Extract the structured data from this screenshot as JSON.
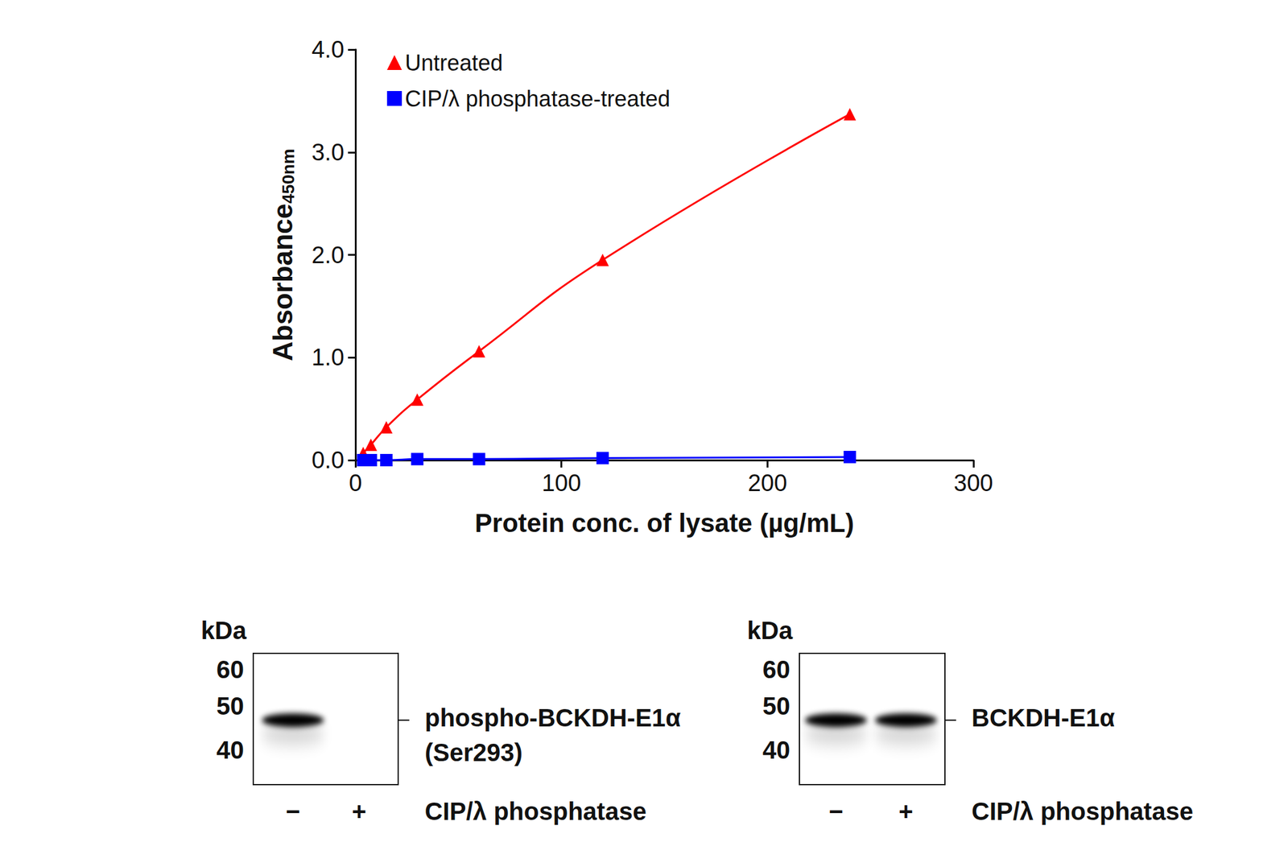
{
  "chart_data": {
    "type": "line",
    "x_label": "Protein conc. of lysate (µg/mL)",
    "y_label": "Absorbance",
    "y_label_subscript": "450nm",
    "xlim": [
      0,
      300
    ],
    "xticks": [
      0,
      100,
      200,
      300
    ],
    "ylim": [
      0,
      4
    ],
    "yticks": [
      {
        "value": 0,
        "label": "0.0"
      },
      {
        "value": 1,
        "label": "1.0"
      },
      {
        "value": 2,
        "label": "2.0"
      },
      {
        "value": 3,
        "label": "3.0"
      },
      {
        "value": 4,
        "label": "4.0"
      }
    ],
    "grid": false,
    "legend": "upper left",
    "series": [
      {
        "name": "Untreated",
        "color": "#ff0000",
        "marker": "triangle",
        "x": [
          3.75,
          7.5,
          15,
          30,
          60,
          120,
          240
        ],
        "values": [
          0.07,
          0.15,
          0.32,
          0.59,
          1.06,
          1.95,
          3.37
        ]
      },
      {
        "name": "CIP/λ phosphatase-treated",
        "color": "#0000ff",
        "marker": "square",
        "x": [
          3.75,
          7.5,
          15,
          30,
          60,
          120,
          240
        ],
        "values": [
          0.0,
          0.0,
          0.0,
          0.01,
          0.01,
          0.02,
          0.03
        ]
      }
    ]
  },
  "blots": [
    {
      "unit_label": "kDa",
      "markers": [
        60,
        50,
        40
      ],
      "band_kda": 47,
      "band_label": [
        "phospho-BCKDH-E1α",
        "(Ser293)"
      ],
      "lanes": [
        "−",
        "+"
      ],
      "bands": [
        true,
        false
      ],
      "treatment_label": "CIP/λ phosphatase"
    },
    {
      "unit_label": "kDa",
      "markers": [
        60,
        50,
        40
      ],
      "band_kda": 47,
      "band_label": [
        "BCKDH-E1α"
      ],
      "lanes": [
        "−",
        "+"
      ],
      "bands": [
        true,
        true
      ],
      "treatment_label": "CIP/λ phosphatase"
    }
  ]
}
